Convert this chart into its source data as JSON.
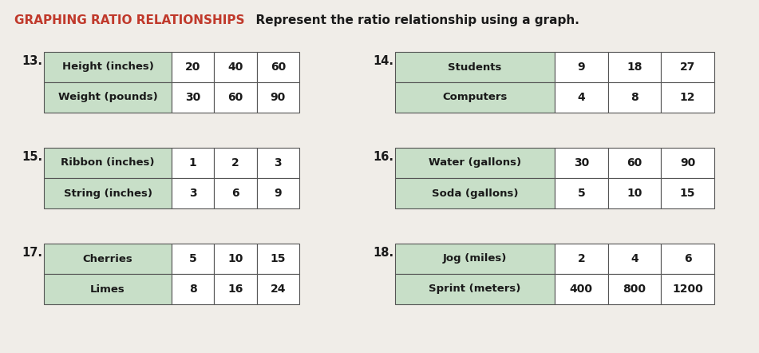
{
  "title_prefix": "GRAPHING RATIO RELATIONSHIPS",
  "title_prefix_color": "#c0392b",
  "title_suffix": "  Represent the ratio relationship using a graph.",
  "title_suffix_color": "#1a1a1a",
  "background_color": "#f0ede8",
  "header_fill": "#c8dfc8",
  "table_border": "#555555",
  "label_font_size": 9.5,
  "val_font_size": 10,
  "tables": [
    {
      "number": "13.",
      "rows": [
        {
          "label": "Height (inches)",
          "values": [
            "20",
            "40",
            "60"
          ]
        },
        {
          "label": "Weight (pounds)",
          "values": [
            "30",
            "60",
            "90"
          ]
        }
      ],
      "col": "left",
      "row_group": 0
    },
    {
      "number": "14.",
      "rows": [
        {
          "label": "Students",
          "values": [
            "9",
            "18",
            "27"
          ]
        },
        {
          "label": "Computers",
          "values": [
            "4",
            "8",
            "12"
          ]
        }
      ],
      "col": "right",
      "row_group": 0
    },
    {
      "number": "15.",
      "rows": [
        {
          "label": "Ribbon (inches)",
          "values": [
            "1",
            "2",
            "3"
          ]
        },
        {
          "label": "String (inches)",
          "values": [
            "3",
            "6",
            "9"
          ]
        }
      ],
      "col": "left",
      "row_group": 1
    },
    {
      "number": "16.",
      "rows": [
        {
          "label": "Water (gallons)",
          "values": [
            "30",
            "60",
            "90"
          ]
        },
        {
          "label": "Soda (gallons)",
          "values": [
            "5",
            "10",
            "15"
          ]
        }
      ],
      "col": "right",
      "row_group": 1
    },
    {
      "number": "17.",
      "rows": [
        {
          "label": "Cherries",
          "values": [
            "5",
            "10",
            "15"
          ]
        },
        {
          "label": "Limes",
          "values": [
            "8",
            "16",
            "24"
          ]
        }
      ],
      "col": "left",
      "row_group": 2
    },
    {
      "number": "18.",
      "rows": [
        {
          "label": "Jog (miles)",
          "values": [
            "2",
            "4",
            "6"
          ]
        },
        {
          "label": "Sprint (meters)",
          "values": [
            "400",
            "800",
            "1200"
          ]
        }
      ],
      "col": "right",
      "row_group": 2
    }
  ]
}
